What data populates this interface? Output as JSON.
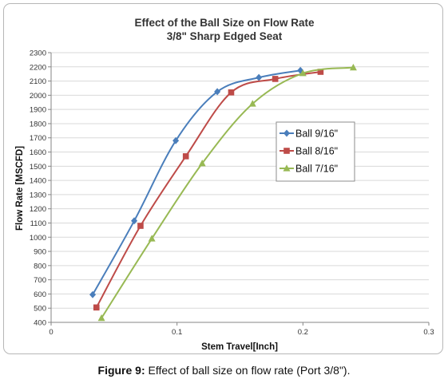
{
  "caption": {
    "figure_label": "Figure 9:",
    "text": " Effect of ball size on flow rate (Port 3/8\")."
  },
  "chart_data": {
    "type": "line",
    "title": "Effect of the Ball Size on Flow Rate",
    "subtitle": "3/8\" Sharp Edged Seat",
    "xlabel": "Stem Travel[Inch]",
    "ylabel": "Flow Rate [MSCFD]",
    "xlim": [
      0,
      0.3
    ],
    "ylim": [
      400,
      2300
    ],
    "x_ticks": [
      "0",
      "0.1",
      "0.2",
      "0.3"
    ],
    "y_ticks": [
      "400",
      "500",
      "600",
      "700",
      "800",
      "900",
      "1000",
      "1100",
      "1200",
      "1300",
      "1400",
      "1500",
      "1600",
      "1700",
      "1800",
      "1900",
      "2000",
      "2100",
      "2200",
      "2300"
    ],
    "grid": true,
    "legend_position": "right",
    "series": [
      {
        "name": "Ball 9/16\"",
        "color": "#4a7ebb",
        "marker": "diamond",
        "x": [
          0.033,
          0.066,
          0.099,
          0.132,
          0.165,
          0.198
        ],
        "y": [
          595,
          1115,
          1680,
          2025,
          2125,
          2175
        ]
      },
      {
        "name": "Ball 8/16\"",
        "color": "#be4b48",
        "marker": "square",
        "x": [
          0.036,
          0.071,
          0.107,
          0.143,
          0.178,
          0.214
        ],
        "y": [
          505,
          1080,
          1570,
          2020,
          2115,
          2165
        ]
      },
      {
        "name": "Ball 7/16\"",
        "color": "#98b954",
        "marker": "triangle",
        "x": [
          0.04,
          0.08,
          0.12,
          0.16,
          0.2,
          0.24
        ],
        "y": [
          430,
          990,
          1520,
          1940,
          2155,
          2195
        ]
      }
    ]
  }
}
